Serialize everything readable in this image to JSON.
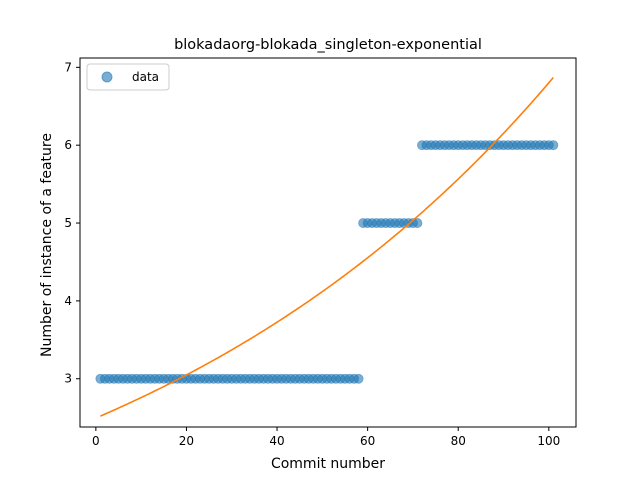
{
  "chart_data": {
    "type": "scatter",
    "title": "blokadaorg-blokada_singleton-exponential",
    "xlabel": "Commit number",
    "ylabel": "Number of instance of a feature",
    "xlim": [
      -3.5,
      106.0
    ],
    "ylim": [
      2.38,
      7.12
    ],
    "xticks": [
      0,
      20,
      40,
      60,
      80,
      100
    ],
    "yticks": [
      3,
      4,
      5,
      6,
      7
    ],
    "legend": {
      "placement": "upper-left",
      "entries": [
        "data"
      ]
    },
    "colors": {
      "points": "#1f77b4",
      "fit": "#ff7f0e"
    },
    "series": [
      {
        "name": "data",
        "kind": "scatter",
        "segments": [
          {
            "x_start": 1,
            "x_end": 58,
            "y": 3
          },
          {
            "x_start": 59,
            "x_end": 71,
            "y": 5
          },
          {
            "x_start": 72,
            "x_end": 101,
            "y": 6
          }
        ]
      },
      {
        "kind": "line",
        "model": "exponential",
        "x_range": [
          1,
          101
        ],
        "y_start": 2.52,
        "y_end": 6.87
      }
    ]
  }
}
